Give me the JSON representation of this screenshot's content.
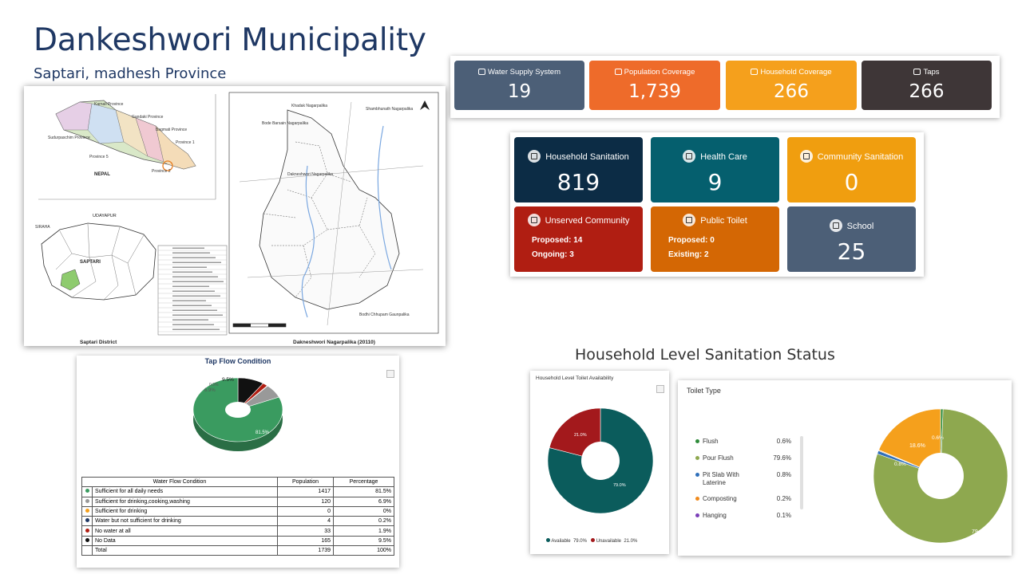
{
  "header": {
    "title": "Dankeshwori Municipality",
    "subtitle": "Saptari, madhesh Province"
  },
  "top_stats": [
    {
      "label": "Water Supply System",
      "value": "19",
      "color": "#4c5f77",
      "icon": "edit-icon"
    },
    {
      "label": "Population Coverage",
      "value": "1,739",
      "color": "#ee6b2a",
      "icon": "users-icon"
    },
    {
      "label": "Household Coverage",
      "value": "266",
      "color": "#f5a01c",
      "icon": "home-icon"
    },
    {
      "label": "Taps",
      "value": "266",
      "color": "#3e3637",
      "icon": "tap-icon"
    }
  ],
  "services": {
    "household_sanitation": {
      "label": "Household Sanitation",
      "value": "819",
      "color": "#0c2c45"
    },
    "health_care": {
      "label": "Health Care",
      "value": "9",
      "color": "#055f6e"
    },
    "community_sanitation": {
      "label": "Community Sanitation",
      "value": "0",
      "color": "#f09e0f"
    },
    "unserved_community": {
      "label": "Unserved Community",
      "line1": "Proposed: 14",
      "line2": "Ongoing: 3",
      "color": "#b01e12"
    },
    "public_toilet": {
      "label": "Public Toilet",
      "line1": "Proposed: 0",
      "line2": "Existing: 2",
      "color": "#d46704"
    },
    "school": {
      "label": "School",
      "value": "25",
      "color": "#4c5f77"
    }
  },
  "map": {
    "nepal_label": "NEPAL",
    "udayapur_label": "UDAYAPUR",
    "saptari_label": "SAPTARI",
    "sirahi_label": "SIRAHA",
    "left_caption": "Saptari District",
    "right_caption": "Dakneshwori Nagarpalika (20110)",
    "province_labels": [
      "Karnali Province",
      "Gandaki Province",
      "Bagmati Province",
      "Sudurpaschim Province",
      "Province 5",
      "Province 1",
      "Province 2"
    ],
    "neighbour_labels": [
      "Khadak Nagarpalika",
      "Shambhunath Nagarpalika",
      "Bode Barsain Nagarpalika",
      "Dakneshwori Nagarpalika",
      "Bodhi Chhupam Gaunpalika"
    ]
  },
  "tap_flow": {
    "title": "Tap Flow Condition",
    "headers": [
      "Water Flow Condition",
      "Population",
      "Percentage"
    ],
    "rows": [
      {
        "label": "Sufficient for all daily needs",
        "population": "1417",
        "pct": "81.5%",
        "color": "#3a9b60"
      },
      {
        "label": "Sufficient for drinking,cooking,washing",
        "population": "120",
        "pct": "6.9%",
        "color": "#999999"
      },
      {
        "label": "Sufficient for drinking",
        "population": "0",
        "pct": "0%",
        "color": "#f5a01c"
      },
      {
        "label": "Water but not sufficient for drinking",
        "population": "4",
        "pct": "0.2%",
        "color": "#1f3864"
      },
      {
        "label": "No water at all",
        "population": "33",
        "pct": "1.9%",
        "color": "#b01e12"
      },
      {
        "label": "No Data",
        "population": "165",
        "pct": "9.5%",
        "color": "#111111"
      },
      {
        "label": "Total",
        "population": "1739",
        "pct": "100%",
        "color": ""
      }
    ],
    "pie_labels": {
      "main": "81.5%",
      "nodata": "9.5%",
      "gray": "6.9%",
      "small": "0.0%"
    }
  },
  "sanitation_section": {
    "title": "Household Level Sanitation Status"
  },
  "chart_data": [
    {
      "type": "pie",
      "title": "Tap Flow Condition",
      "categories": [
        "Sufficient for all daily needs",
        "Sufficient for drinking,cooking,washing",
        "Sufficient for drinking",
        "Water but not sufficient for drinking",
        "No water at all",
        "No Data"
      ],
      "values": [
        81.5,
        6.9,
        0,
        0.2,
        1.9,
        9.5
      ]
    },
    {
      "type": "pie",
      "title": "Household Level Toilet Availability",
      "categories": [
        "Available",
        "Unavailable"
      ],
      "values": [
        79.0,
        21.0
      ],
      "legend": [
        {
          "name": "Available",
          "pct": "79.0%"
        },
        {
          "name": "Unavailable",
          "pct": "21.0%"
        }
      ],
      "colors": [
        "#0b5c5c",
        "#a3191c"
      ],
      "labels": [
        "79.0%",
        "21.0%"
      ]
    },
    {
      "type": "pie",
      "title": "Toilet Type",
      "categories": [
        "Flush",
        "Pour Flush",
        "Pit Slab With Laterine",
        "Composting",
        "Hanging"
      ],
      "values": [
        0.6,
        79.6,
        0.8,
        0.2,
        0.1
      ],
      "pct_labels": [
        "0.6%",
        "79.6%",
        "0.8%",
        "0.2%",
        "0.1%"
      ],
      "colors": [
        "#2e8b3a",
        "#8ea84f",
        "#2f6fba",
        "#f08a1c",
        "#7b3fb8"
      ],
      "slice_labels": {
        "pour": "79.6%",
        "other": "18.6%",
        "flush": "0.6%",
        "pit": "0.8%"
      }
    }
  ]
}
